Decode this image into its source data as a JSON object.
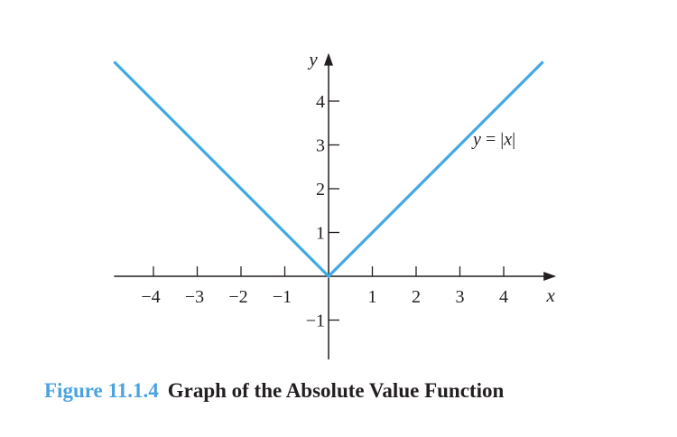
{
  "chart_data": {
    "type": "line",
    "xlabel": "x",
    "ylabel": "y",
    "xlim": [
      -4.9,
      5.2
    ],
    "ylim": [
      -1.9,
      5.1
    ],
    "x_ticks": [
      -4,
      -3,
      -2,
      -1,
      1,
      2,
      3,
      4
    ],
    "y_ticks": [
      -1,
      1,
      2,
      3,
      4
    ],
    "series": [
      {
        "name": "y = |x|",
        "label_parts": [
          "y",
          " = |",
          "x",
          "|"
        ],
        "x": [
          -4.9,
          0,
          4.9
        ],
        "y": [
          4.9,
          0,
          4.9
        ],
        "color": "#3fa9e8"
      }
    ],
    "grid": false,
    "legend": "none"
  },
  "caption": {
    "number": "Figure 11.1.4",
    "text": "Graph of the Absolute Value Function"
  },
  "colors": {
    "curve": "#3fa9e8",
    "caption_number": "#4aa3df",
    "axes": "#231f20"
  }
}
